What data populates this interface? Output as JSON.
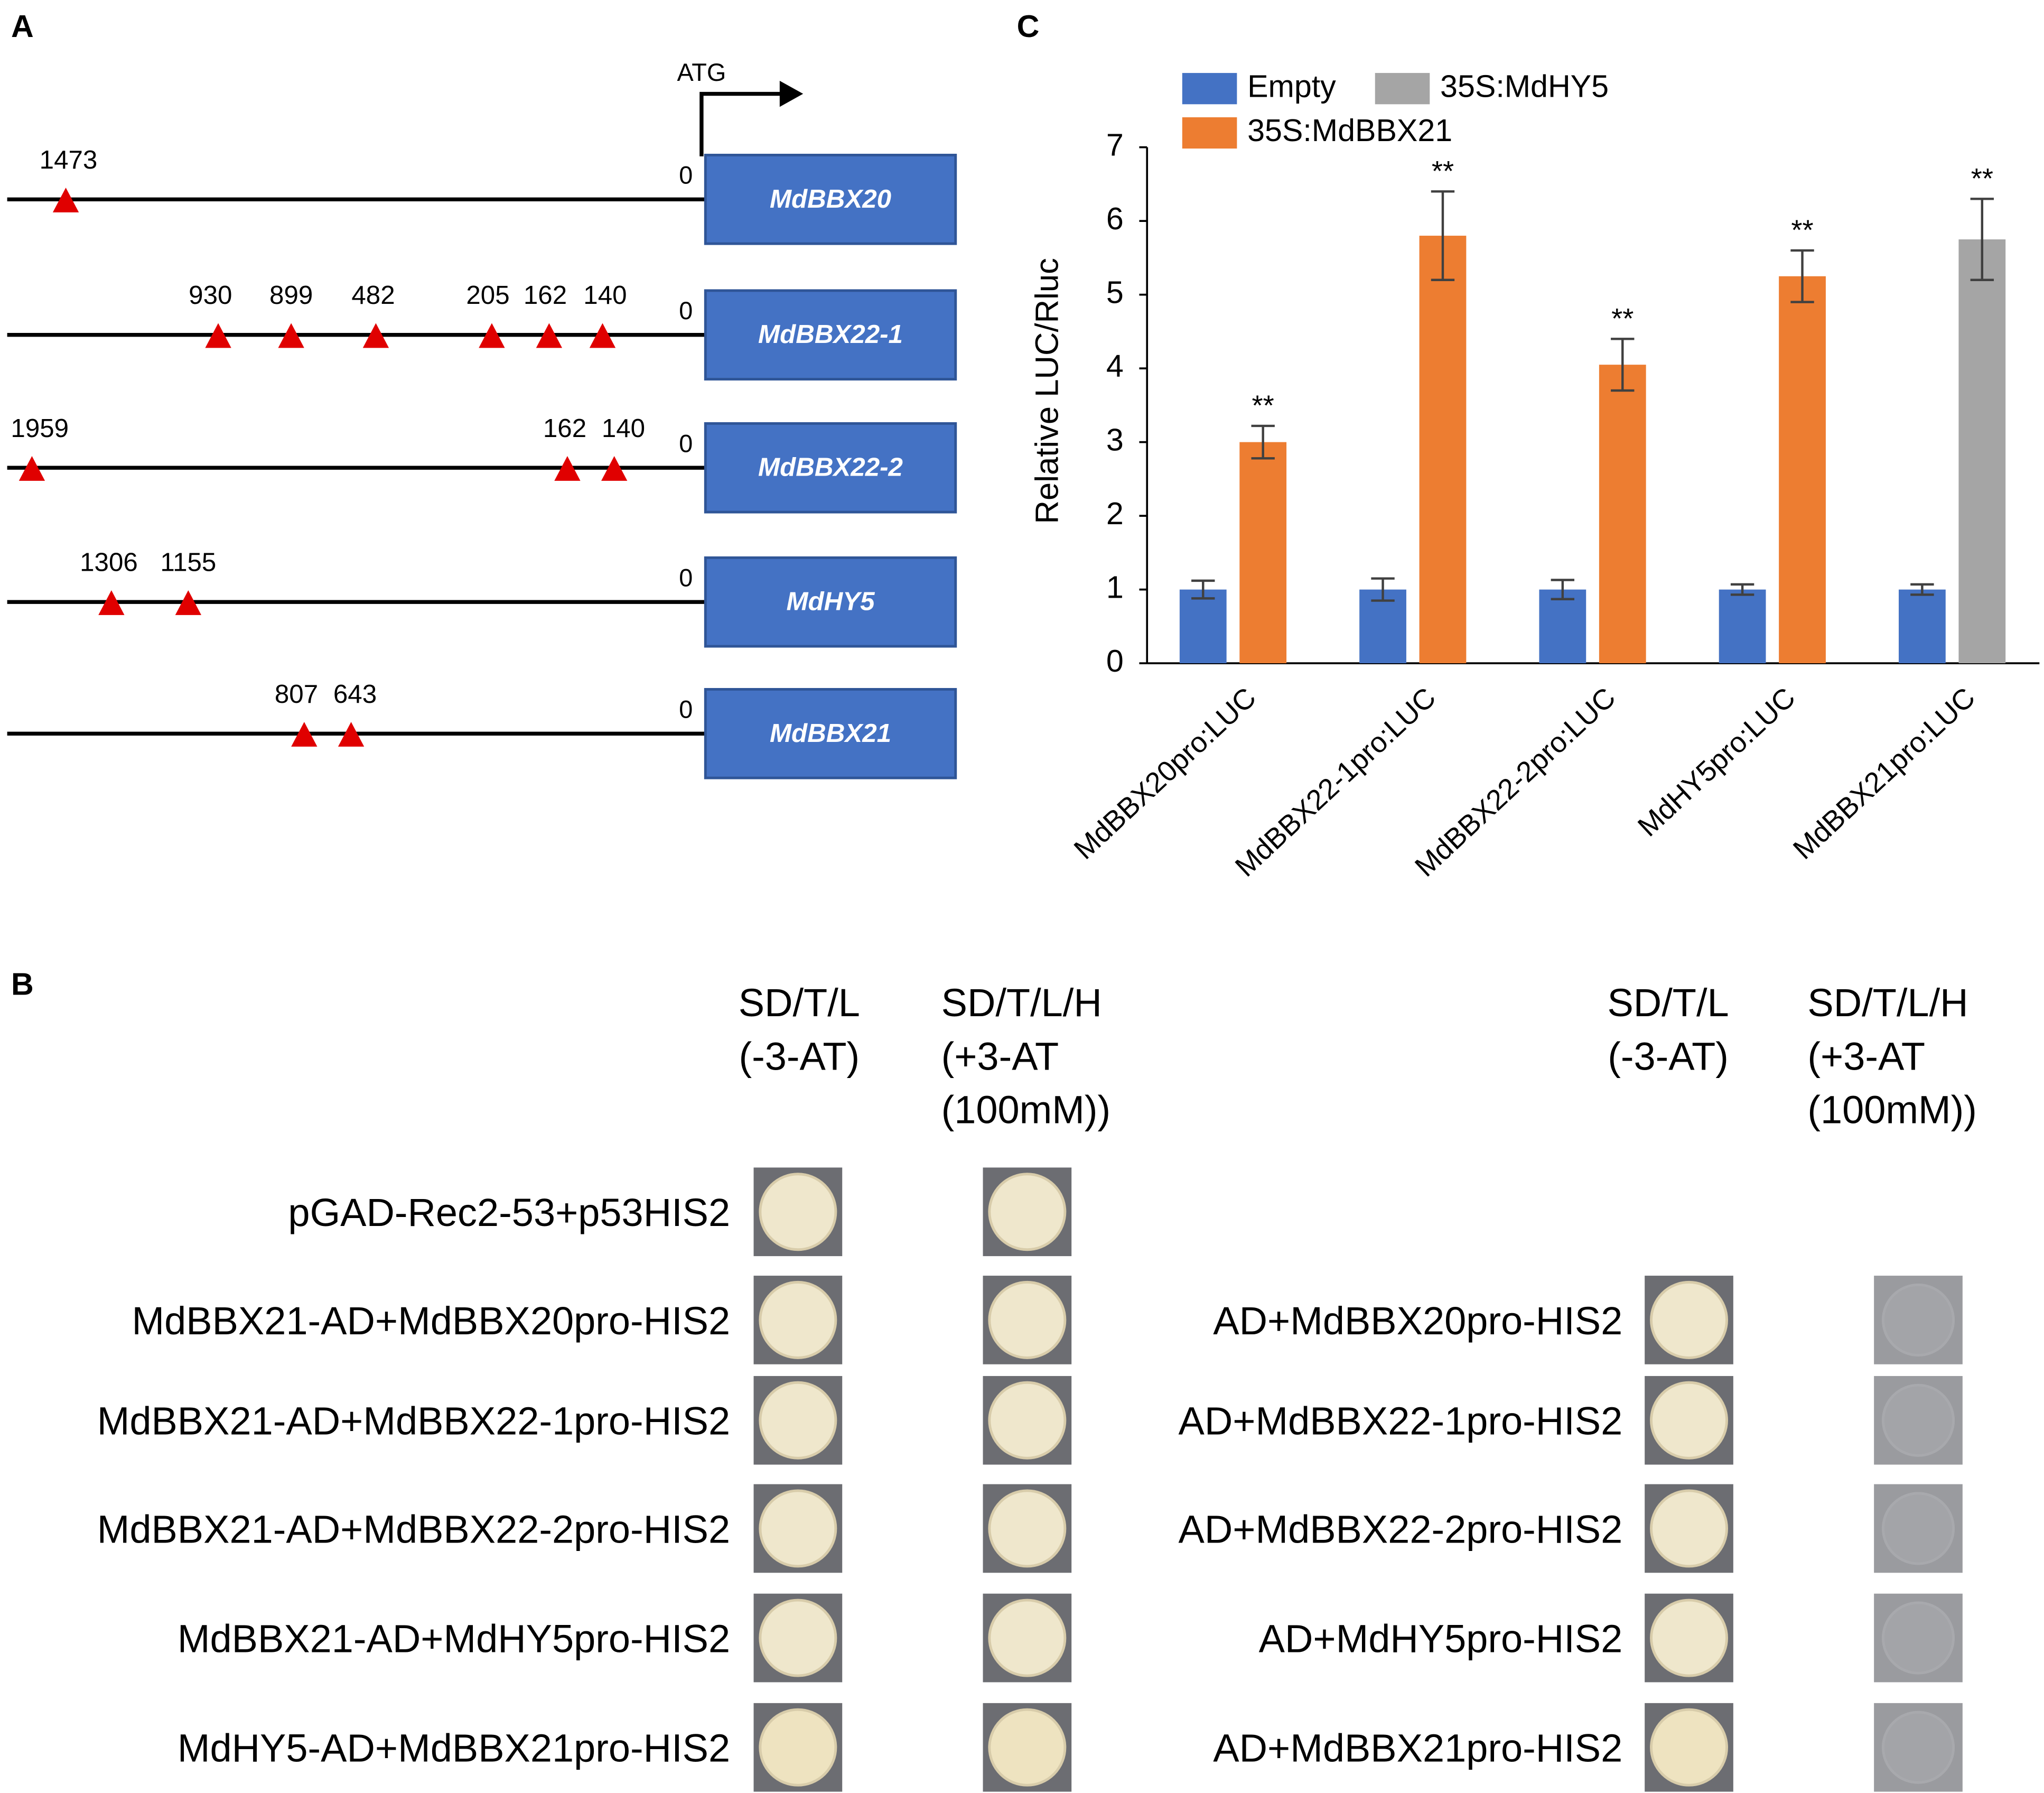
{
  "panel_labels": {
    "a": "A",
    "b": "B",
    "c": "C"
  },
  "panel_a": {
    "start_label": "ATG",
    "origin_label": "0",
    "genes": [
      {
        "name": "MdBBX20",
        "sites": [
          "1473"
        ]
      },
      {
        "name": "MdBBX22-1",
        "sites": [
          "930",
          "899",
          "482",
          "205",
          "162",
          "140"
        ]
      },
      {
        "name": "MdBBX22-2",
        "sites": [
          "1959",
          "162",
          "140"
        ]
      },
      {
        "name": "MdHY5",
        "sites": [
          "1306",
          "1155"
        ]
      },
      {
        "name": "MdBBX21",
        "sites": [
          "807",
          "643"
        ]
      }
    ]
  },
  "chart_data": {
    "type": "bar",
    "y_label": "Relative LUC/Rluc",
    "categories": [
      "MdBBX20pro:LUC",
      "MdBBX22-1pro:LUC",
      "MdBBX22-2pro:LUC",
      "MdHY5pro:LUC",
      "MdBBX21pro:LUC"
    ],
    "series": [
      {
        "name": "Empty",
        "color": "#4472c4",
        "values": [
          1,
          1,
          1,
          1,
          1
        ],
        "errors": [
          0.12,
          0.15,
          0.13,
          0.07,
          0.07
        ]
      },
      {
        "name": "35S:MdBBX21",
        "color": "#ed7d31",
        "values": [
          3.0,
          5.8,
          4.05,
          5.25,
          null
        ],
        "errors": [
          0.22,
          0.6,
          0.35,
          0.35,
          null
        ],
        "annotations": [
          "**",
          "**",
          "**",
          "**",
          null
        ]
      },
      {
        "name": "35S:MdHY5",
        "color": "#a5a5a5",
        "values": [
          null,
          null,
          null,
          null,
          5.75
        ],
        "errors": [
          null,
          null,
          null,
          null,
          0.55
        ],
        "annotations": [
          null,
          null,
          null,
          null,
          "**"
        ]
      }
    ],
    "ylim": [
      0,
      7
    ],
    "yticks": [
      0,
      1,
      2,
      3,
      4,
      5,
      6,
      7
    ],
    "grid": false
  },
  "panel_b": {
    "column_headers": [
      [
        "SD/T/L",
        "(-3-AT)"
      ],
      [
        "SD/T/L/H",
        "(+3-AT",
        "(100mM))"
      ]
    ],
    "left_rows": [
      "pGAD-Rec2-53+p53HIS2",
      "MdBBX21-AD+MdBBX20pro-HIS2",
      "MdBBX21-AD+MdBBX22-1pro-HIS2",
      "MdBBX21-AD+MdBBX22-2pro-HIS2",
      "MdBBX21-AD+MdHY5pro-HIS2",
      "MdHY5-AD+MdBBX21pro-HIS2"
    ],
    "right_rows": [
      "AD+MdBBX20pro-HIS2",
      "AD+MdBBX22-1pro-HIS2",
      "AD+MdBBX22-2pro-HIS2",
      "AD+MdHY5pro-HIS2",
      "AD+MdBBX21pro-HIS2"
    ]
  }
}
